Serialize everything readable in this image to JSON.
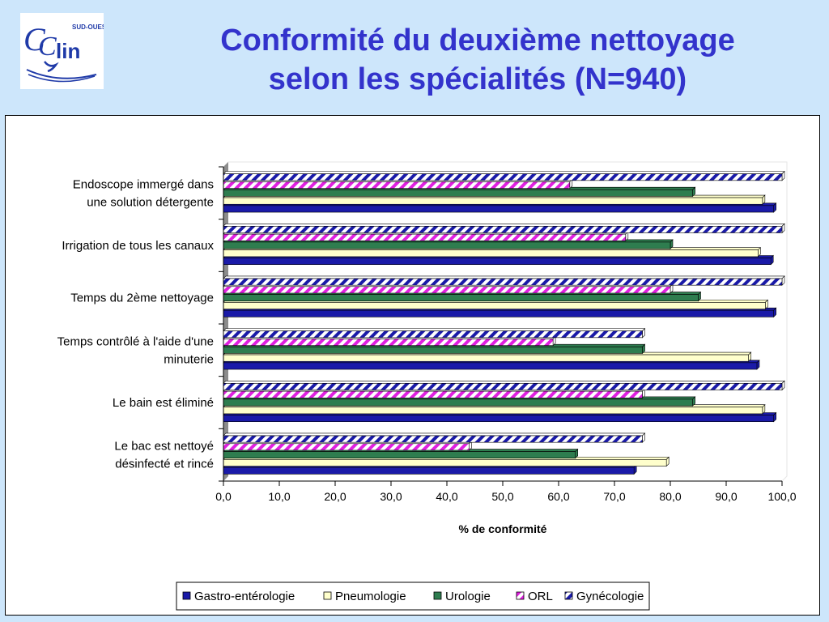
{
  "header": {
    "logo_text": "CClin SUD-OUEST",
    "title_line1": "Conformité du deuxième nettoyage",
    "title_line2": "selon les spécialités (N=940)"
  },
  "chart_data": {
    "type": "bar",
    "orientation": "horizontal",
    "categories": [
      [
        "Endoscope immergé dans",
        "une solution détergente"
      ],
      [
        "Irrigation de tous les canaux"
      ],
      [
        "Temps du 2ème nettoyage"
      ],
      [
        "Temps contrôlé à l'aide d'une",
        "minuterie"
      ],
      [
        "Le bain est éliminé"
      ],
      [
        "Le bac est nettoyé",
        "désinfecté et rincé"
      ]
    ],
    "series": [
      {
        "name": "Gastro-entérologie",
        "color": "#1a1aa8",
        "pattern": "solid",
        "values": [
          98.5,
          98.0,
          98.5,
          95.5,
          98.5,
          73.5
        ]
      },
      {
        "name": "Pneumologie",
        "color": "#ffffcc",
        "pattern": "solid",
        "values": [
          96.5,
          95.7,
          97.0,
          94.0,
          96.5,
          79.3
        ]
      },
      {
        "name": "Urologie",
        "color": "#2e7d4f",
        "pattern": "solid",
        "values": [
          84.0,
          80.0,
          85.0,
          75.0,
          84.0,
          63.0
        ]
      },
      {
        "name": "ORL",
        "color": "#e020e0",
        "pattern": "diagonal-stripes",
        "values": [
          62.0,
          72.0,
          80.0,
          59.0,
          75.0,
          44.0
        ]
      },
      {
        "name": "Gynécologie",
        "color": "#1a1aa8",
        "pattern": "diagonal-stripes",
        "values": [
          100.0,
          100.0,
          100.0,
          75.0,
          100.0,
          75.0
        ]
      }
    ],
    "xlim": [
      0,
      100
    ],
    "xticks": [
      "0,0",
      "10,0",
      "20,0",
      "30,0",
      "40,0",
      "50,0",
      "60,0",
      "70,0",
      "80,0",
      "90,0",
      "100,0"
    ],
    "xlabel": "% de conformité",
    "legend_position": "bottom"
  }
}
